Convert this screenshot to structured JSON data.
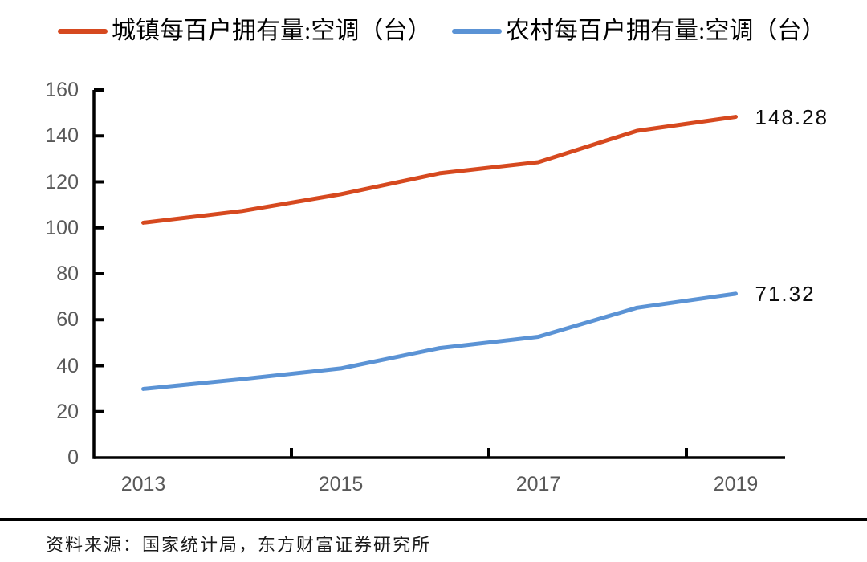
{
  "legend": {
    "items": [
      {
        "label": "城镇每百户拥有量:空调（台）",
        "color": "#D6491F"
      },
      {
        "label": "农村每百户拥有量:空调（台）",
        "color": "#5B93D5"
      }
    ]
  },
  "chart_data": {
    "type": "line",
    "title": "",
    "x": [
      "2013",
      "2014",
      "2015",
      "2016",
      "2017",
      "2018",
      "2019"
    ],
    "series": [
      {
        "name": "城镇每百户拥有量:空调（台）",
        "color": "#D6491F",
        "values": [
          102.2,
          107.32,
          114.6,
          123.7,
          128.56,
          142.19,
          148.28
        ],
        "end_label": "148.28"
      },
      {
        "name": "农村每百户拥有量:空调（台）",
        "color": "#5B93D5",
        "values": [
          29.89,
          34.17,
          38.81,
          47.64,
          52.57,
          65.22,
          71.32
        ],
        "end_label": "71.32"
      }
    ],
    "ylim": [
      0,
      160
    ],
    "y_ticks": [
      0,
      20,
      40,
      60,
      80,
      100,
      120,
      140,
      160
    ],
    "x_tick_labels": [
      {
        "index": 0,
        "label": "2013"
      },
      {
        "index": 2,
        "label": "2015"
      },
      {
        "index": 4,
        "label": "2017"
      },
      {
        "index": 6,
        "label": "2019"
      }
    ],
    "grid": false,
    "legend_position": "top",
    "axis_color": "#000000",
    "tick_label_color": "#595959"
  },
  "footer": {
    "source": "资料来源：国家统计局，东方财富证券研究所"
  }
}
